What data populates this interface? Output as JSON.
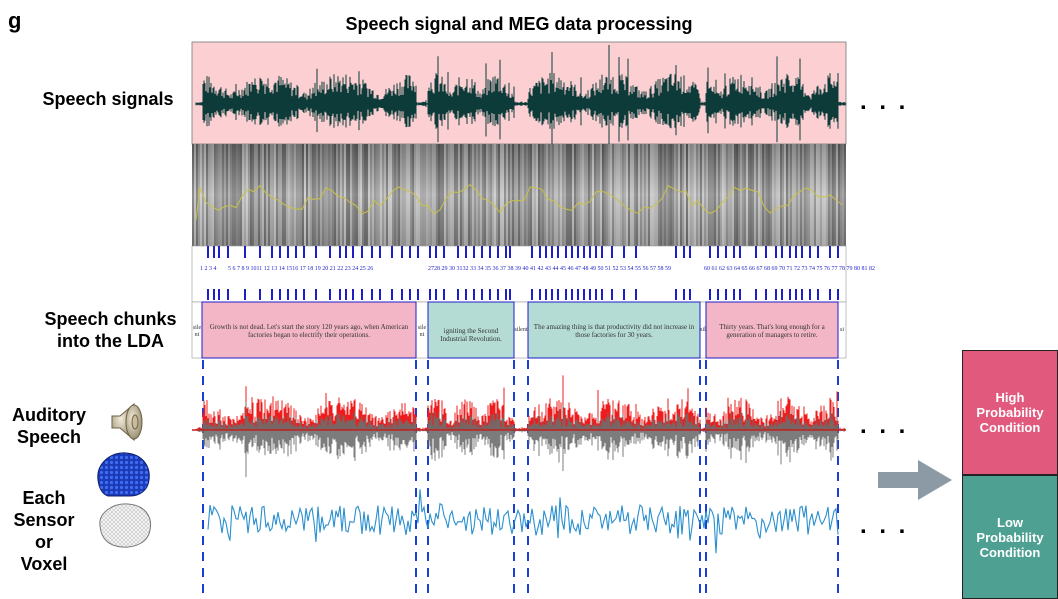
{
  "panel_letter": "g",
  "title": "Speech signal and MEG data processing",
  "labels": {
    "speech_signals": "Speech signals",
    "speech_chunks_line1": "Speech chunks",
    "speech_chunks_line2": "into the LDA",
    "auditory_line1": "Auditory",
    "auditory_line2": "Speech",
    "sensor_line1": "Each",
    "sensor_line2": "Sensor",
    "sensor_line3": "or",
    "sensor_line4": "Voxel"
  },
  "ellipsis": ". . .",
  "chunks": [
    {
      "text": "Growth is not dead. Let's start the story 120 years ago, when American factories began to electrify their operations.",
      "color": "#f2b6c6"
    },
    {
      "text": "igniting the Second Industrial Revolution.",
      "color": "#b4dcd4"
    },
    {
      "text": "The amazing thing is that productivity did not increase in those factories for 30 years.",
      "color": "#b4dcd4"
    },
    {
      "text": "Thirty years. That's long enough for a generation of managers to retire.",
      "color": "#f2b6c6"
    }
  ],
  "gap_labels": [
    "sile nt",
    "sile nt",
    "silent",
    "sil",
    "si"
  ],
  "word_numbers": [
    "1 2 3  4",
    "5  6  7 8 9 1011  12  13 14 1516  17 18 19 20  21 22 23 24 25  26",
    "2728 29  30 3132 33 34  35 36 37 38 39 40",
    "41 42 43 44 45 46 47 48 49 50 51 52 53 54 55 56  57 58 59",
    "60 61 62 63  64 65 66 67 68  69  70 71 72 73 74 75 76 77 78 79 80  81  82"
  ],
  "conditions": [
    {
      "label": "High Probability Condition",
      "color": "#e15a7e"
    },
    {
      "label": "Low Probability Condition",
      "color": "#4ea093"
    }
  ],
  "colors": {
    "speech_bg": "#fcd0d3",
    "waveform": "#0d3b3a",
    "auditory_red": "#ee1c1c",
    "auditory_gray": "#6e6e6e",
    "meg_blue": "#2a8fcf",
    "marker_blue": "#1e1ec8",
    "dash_blue": "#1a3fd6",
    "arrow_gray": "#8c9aa6"
  },
  "icons": [
    "speaker-icon",
    "meg-sensor-head-icon",
    "brain-mesh-icon",
    "right-arrow-icon"
  ]
}
